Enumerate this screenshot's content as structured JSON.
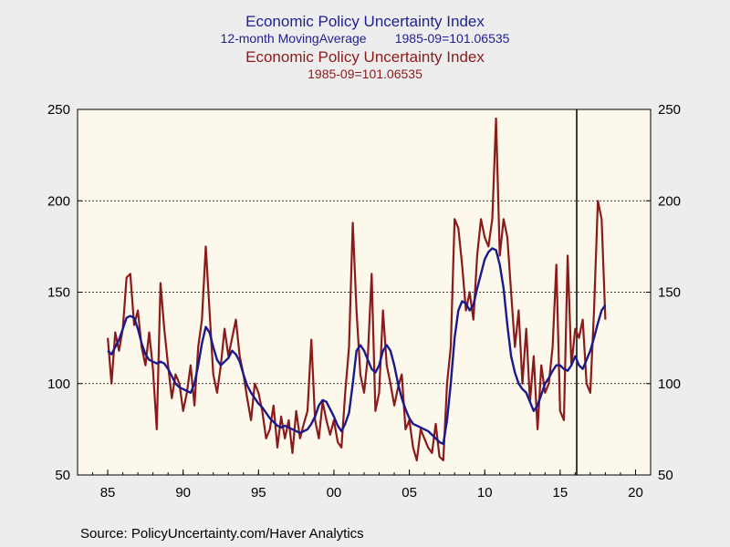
{
  "titles": {
    "series1_title": "Economic Policy Uncertainty Index",
    "series1_sub_left": "12-month MovingAverage",
    "series1_sub_right": "1985-09=101.06535",
    "series2_title": "Economic Policy Uncertainty Index",
    "series2_sub": "1985-09=101.06535"
  },
  "source": "Source:  PolicyUncertainty.com/Haver Analytics",
  "colors": {
    "moving_average": "#1a1a8c",
    "index": "#8b1a1a",
    "plot_bg": "#fdf8ec",
    "page_bg": "#ededed"
  },
  "chart_data": {
    "type": "line",
    "title": "Economic Policy Uncertainty Index",
    "x_tick_labels": [
      "85",
      "90",
      "95",
      "00",
      "05",
      "10",
      "15",
      "20"
    ],
    "x_ticks": [
      1985,
      1990,
      1995,
      2000,
      2005,
      2010,
      2015,
      2020
    ],
    "xlim": [
      1983,
      2021
    ],
    "ylim": [
      50,
      250
    ],
    "y_ticks": [
      50,
      100,
      150,
      200,
      250
    ],
    "grid": "horizontal dashed at 100, 150, 200",
    "vertical_marker_x": 2016.1,
    "x_step": 0.25,
    "x_start": 1985.0,
    "series": [
      {
        "name": "12-month MovingAverage",
        "color": "#1a1a8c",
        "values": [
          118,
          116,
          120,
          124,
          130,
          136,
          137,
          136,
          130,
          122,
          116,
          113,
          112,
          111,
          112,
          111,
          108,
          104,
          100,
          98,
          97,
          96,
          95,
          100,
          110,
          122,
          131,
          128,
          120,
          113,
          110,
          112,
          114,
          118,
          116,
          112,
          105,
          99,
          95,
          92,
          89,
          87,
          84,
          81,
          79,
          77,
          76,
          77,
          76,
          75,
          74,
          73,
          74,
          75,
          78,
          82,
          88,
          91,
          90,
          86,
          82,
          77,
          74,
          78,
          84,
          100,
          118,
          121,
          118,
          113,
          108,
          106,
          110,
          118,
          121,
          118,
          110,
          100,
          92,
          86,
          81,
          78,
          77,
          76,
          75,
          74,
          72,
          70,
          68,
          67,
          80,
          100,
          125,
          140,
          145,
          144,
          140,
          143,
          152,
          160,
          168,
          172,
          174,
          173,
          165,
          152,
          132,
          115,
          106,
          100,
          97,
          95,
          90,
          85,
          88,
          94,
          100,
          103,
          107,
          110,
          110,
          108,
          107,
          110,
          115,
          110,
          108,
          113,
          118,
          125,
          133,
          140,
          143
        ]
      },
      {
        "name": "Economic Policy Uncertainty Index",
        "color": "#8b1a1a",
        "values": [
          125,
          100,
          128,
          118,
          130,
          158,
          160,
          132,
          140,
          120,
          110,
          128,
          108,
          75,
          155,
          130,
          110,
          92,
          105,
          100,
          85,
          95,
          110,
          88,
          120,
          135,
          175,
          140,
          105,
          95,
          110,
          130,
          115,
          125,
          135,
          115,
          105,
          92,
          80,
          100,
          95,
          85,
          70,
          75,
          88,
          65,
          82,
          70,
          80,
          62,
          85,
          70,
          78,
          85,
          124,
          80,
          70,
          90,
          80,
          72,
          80,
          68,
          65,
          95,
          120,
          188,
          140,
          105,
          95,
          115,
          160,
          85,
          95,
          140,
          110,
          100,
          88,
          98,
          105,
          75,
          80,
          65,
          58,
          75,
          70,
          65,
          62,
          78,
          60,
          58,
          100,
          120,
          190,
          185,
          165,
          140,
          150,
          135,
          170,
          190,
          180,
          175,
          190,
          245,
          170,
          190,
          180,
          150,
          120,
          140,
          100,
          130,
          90,
          115,
          75,
          110,
          95,
          100,
          120,
          165,
          85,
          80,
          170,
          110,
          130,
          125,
          135,
          100,
          95,
          140,
          200,
          190,
          135
        ]
      }
    ]
  }
}
